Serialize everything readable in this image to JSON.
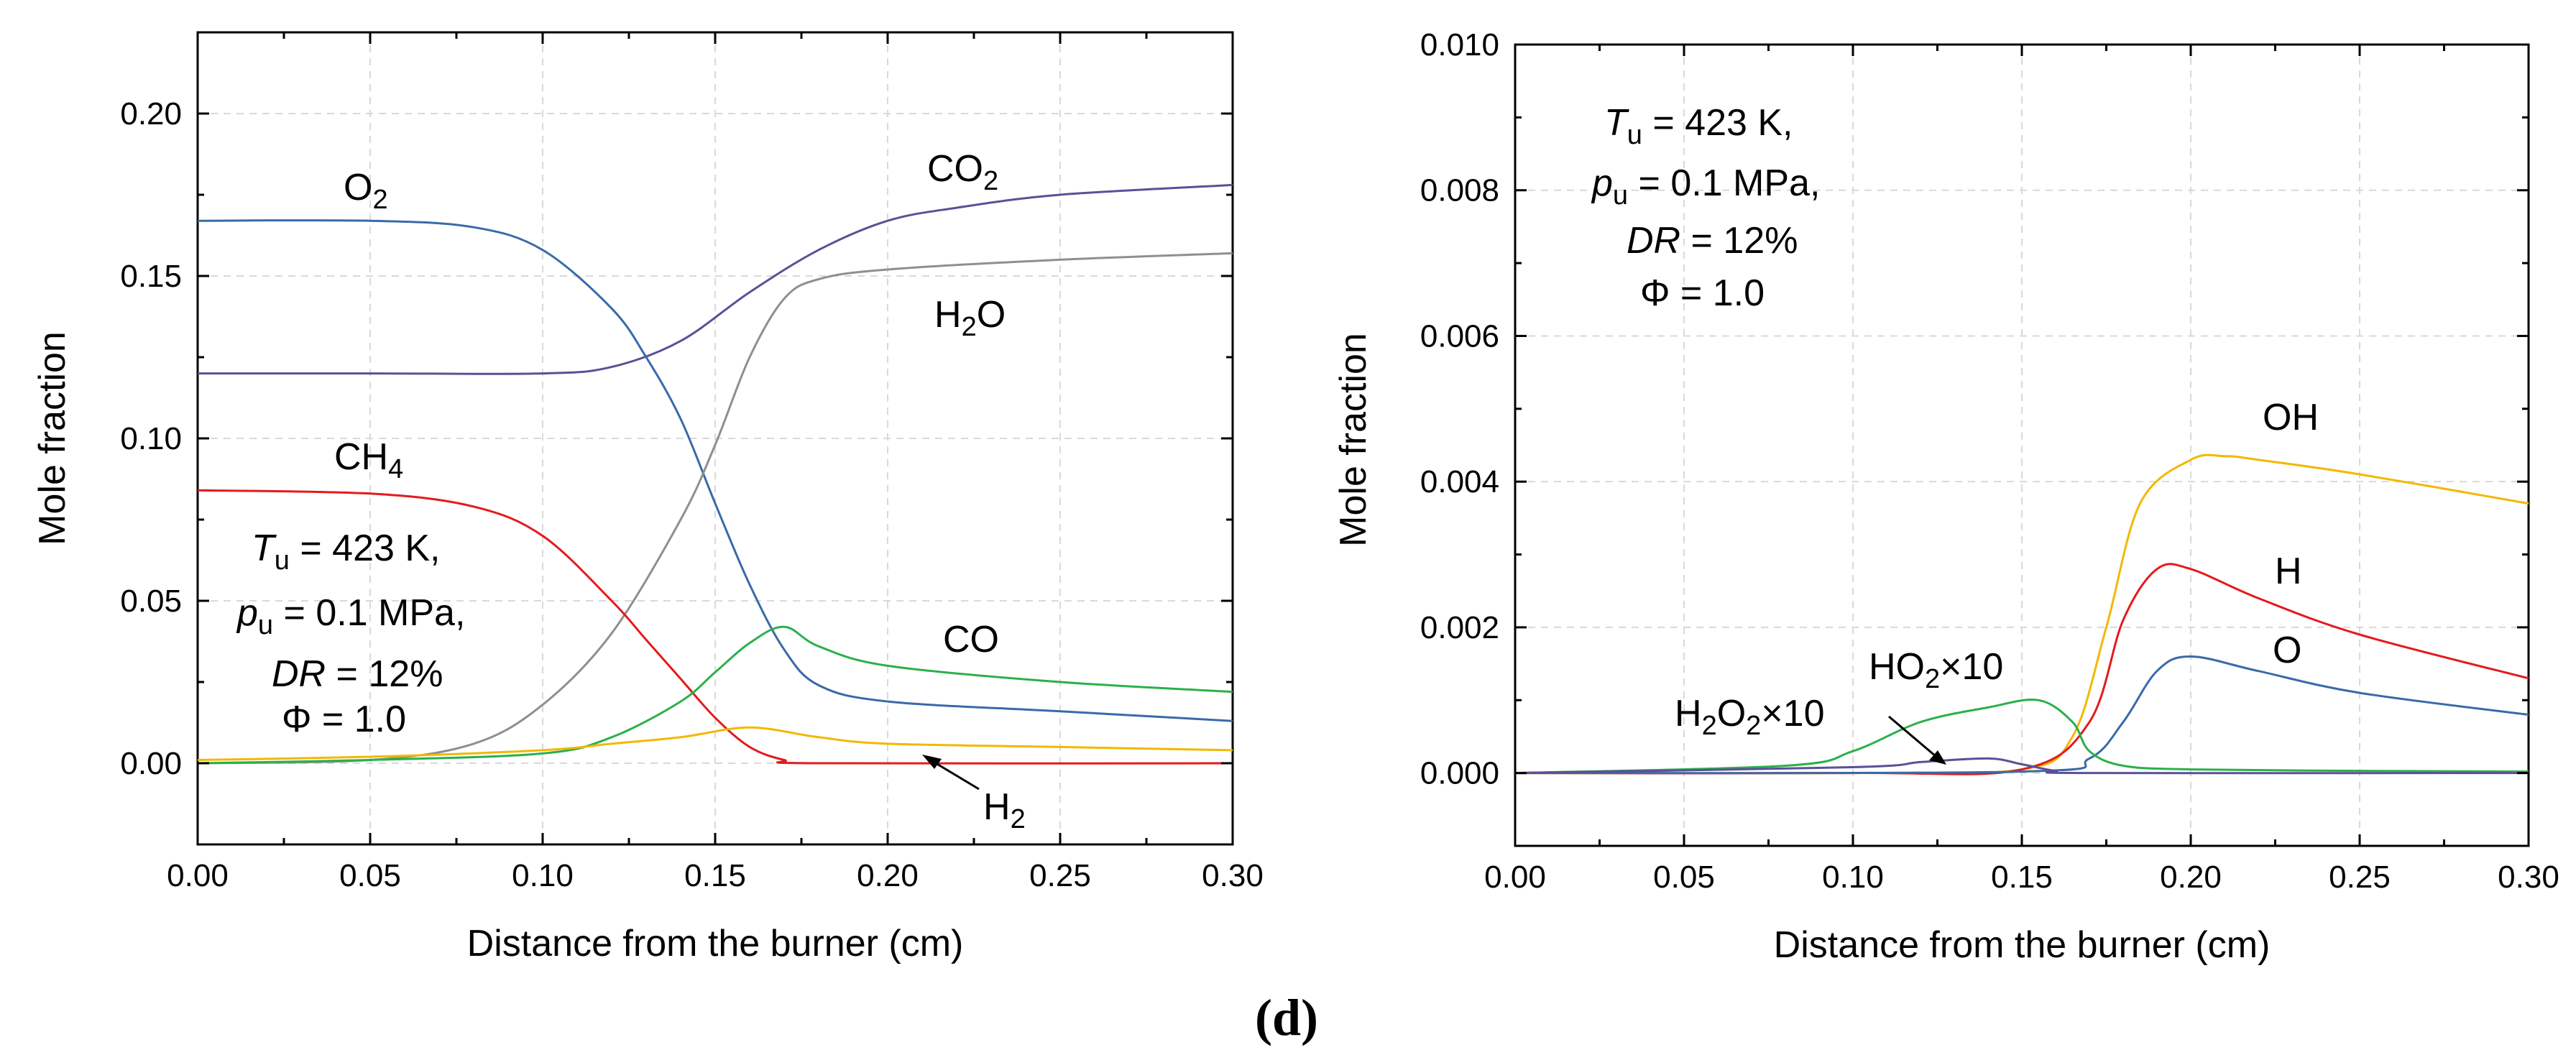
{
  "figure_label": "(d)",
  "chart_data": [
    {
      "type": "line",
      "title": "",
      "xlabel": "Distance from the burner (cm)",
      "ylabel": "Mole fraction",
      "xlim": [
        0,
        0.3
      ],
      "ylim": [
        -0.025,
        0.225
      ],
      "xticks": [
        0,
        0.05,
        0.1,
        0.15,
        0.2,
        0.25,
        0.3
      ],
      "xtick_labels": [
        "0.00",
        "0.05",
        "0.10",
        "0.15",
        "0.20",
        "0.25",
        "0.30"
      ],
      "yticks": [
        0,
        0.05,
        0.1,
        0.15,
        0.2
      ],
      "ytick_labels": [
        "0.00",
        "0.05",
        "0.10",
        "0.15",
        "0.20"
      ],
      "grid": true,
      "conditions": [
        "T",
        "u",
        " = 423 K,",
        "p",
        "u",
        " = 0.1 MPa,",
        "DR",
        " = 12%",
        "Φ = 1.0"
      ],
      "species_labels": {
        "O2": [
          "O",
          "2"
        ],
        "CO2": [
          "CO",
          "2"
        ],
        "H2O": [
          "H",
          "2",
          "O"
        ],
        "CH4": [
          "CH",
          "4"
        ],
        "CO": "CO",
        "H2": [
          "H",
          "2"
        ]
      },
      "series": [
        {
          "name": "CO2",
          "color": "#5c4f98",
          "x": [
            0,
            0.05,
            0.1,
            0.12,
            0.14,
            0.16,
            0.18,
            0.2,
            0.22,
            0.25,
            0.3
          ],
          "values": [
            0.12,
            0.12,
            0.12,
            0.122,
            0.13,
            0.145,
            0.158,
            0.167,
            0.171,
            0.175,
            0.178
          ]
        },
        {
          "name": "O2",
          "color": "#3a6aa8",
          "x": [
            0,
            0.05,
            0.08,
            0.1,
            0.12,
            0.13,
            0.14,
            0.15,
            0.16,
            0.17,
            0.18,
            0.2,
            0.25,
            0.3
          ],
          "values": [
            0.167,
            0.167,
            0.165,
            0.158,
            0.14,
            0.125,
            0.106,
            0.08,
            0.055,
            0.035,
            0.024,
            0.019,
            0.016,
            0.013
          ]
        },
        {
          "name": "H2O",
          "color": "#8f8f8f",
          "x": [
            0,
            0.05,
            0.08,
            0.1,
            0.12,
            0.14,
            0.15,
            0.16,
            0.17,
            0.18,
            0.2,
            0.25,
            0.3
          ],
          "values": [
            0,
            0.001,
            0.006,
            0.018,
            0.04,
            0.075,
            0.098,
            0.125,
            0.143,
            0.149,
            0.152,
            0.155,
            0.157
          ]
        },
        {
          "name": "CH4",
          "color": "#e41a1c",
          "x": [
            0,
            0.05,
            0.08,
            0.1,
            0.12,
            0.13,
            0.14,
            0.15,
            0.16,
            0.17,
            0.18,
            0.3
          ],
          "values": [
            0.084,
            0.083,
            0.079,
            0.07,
            0.05,
            0.038,
            0.026,
            0.014,
            0.005,
            0.001,
            0,
            0
          ]
        },
        {
          "name": "CO",
          "color": "#2bb04a",
          "x": [
            0,
            0.05,
            0.1,
            0.12,
            0.14,
            0.15,
            0.16,
            0.17,
            0.18,
            0.2,
            0.25,
            0.3
          ],
          "values": [
            0,
            0.001,
            0.003,
            0.008,
            0.019,
            0.028,
            0.037,
            0.042,
            0.036,
            0.03,
            0.025,
            0.022
          ]
        },
        {
          "name": "H2",
          "color": "#f2b800",
          "x": [
            0,
            0.05,
            0.1,
            0.12,
            0.14,
            0.16,
            0.18,
            0.2,
            0.25,
            0.3
          ],
          "values": [
            0.001,
            0.002,
            0.004,
            0.006,
            0.008,
            0.011,
            0.008,
            0.006,
            0.005,
            0.004
          ]
        }
      ]
    },
    {
      "type": "line",
      "title": "",
      "xlabel": "Distance from the burner (cm)",
      "ylabel": "Mole fraction",
      "xlim": [
        0,
        0.3
      ],
      "ylim": [
        -0.001,
        0.01
      ],
      "xticks": [
        0,
        0.05,
        0.1,
        0.15,
        0.2,
        0.25,
        0.3
      ],
      "xtick_labels": [
        "0.00",
        "0.05",
        "0.10",
        "0.15",
        "0.20",
        "0.25",
        "0.30"
      ],
      "yticks": [
        0,
        0.002,
        0.004,
        0.006,
        0.008,
        0.01
      ],
      "ytick_labels": [
        "0.000",
        "0.002",
        "0.004",
        "0.006",
        "0.008",
        "0.010"
      ],
      "grid": true,
      "conditions": [
        "T",
        "u",
        " = 423 K,",
        "p",
        "u",
        " = 0.1 MPa,",
        "DR",
        " = 12%",
        "Φ = 1.0"
      ],
      "species_labels": {
        "OH": "OH",
        "H": "H",
        "O": "O",
        "HO2": [
          "HO",
          "2",
          "×10"
        ],
        "H2O2": [
          "H",
          "2",
          "O",
          "2",
          "×10"
        ]
      },
      "series": [
        {
          "name": "OH",
          "color": "#f2b800",
          "x": [
            0,
            0.1,
            0.15,
            0.165,
            0.175,
            0.185,
            0.2,
            0.21,
            0.22,
            0.25,
            0.3
          ],
          "values": [
            0,
            0,
            5e-05,
            0.0005,
            0.002,
            0.0037,
            0.0043,
            0.00435,
            0.0043,
            0.0041,
            0.0037
          ]
        },
        {
          "name": "H",
          "color": "#e41a1c",
          "x": [
            0,
            0.1,
            0.15,
            0.17,
            0.18,
            0.19,
            0.2,
            0.22,
            0.25,
            0.3
          ],
          "values": [
            0,
            0,
            5e-05,
            0.0007,
            0.0021,
            0.0028,
            0.0028,
            0.0024,
            0.0019,
            0.0013
          ]
        },
        {
          "name": "O",
          "color": "#3a6aa8",
          "x": [
            0,
            0.15,
            0.17,
            0.18,
            0.19,
            0.2,
            0.22,
            0.25,
            0.3
          ],
          "values": [
            0,
            2e-05,
            0.0002,
            0.0007,
            0.0014,
            0.0016,
            0.0014,
            0.0011,
            0.0008
          ]
        },
        {
          "name": "HO2x10",
          "color": "#2bb04a",
          "x": [
            0,
            0.08,
            0.1,
            0.12,
            0.14,
            0.155,
            0.165,
            0.17,
            0.18,
            0.2,
            0.25,
            0.3
          ],
          "values": [
            0,
            0.0001,
            0.0003,
            0.0007,
            0.0009,
            0.001,
            0.0007,
            0.0003,
            0.0001,
            5e-05,
            3e-05,
            2e-05
          ]
        },
        {
          "name": "H2O2x10",
          "color": "#5c4f98",
          "x": [
            0,
            0.1,
            0.12,
            0.14,
            0.15,
            0.16,
            0.17,
            0.3
          ],
          "values": [
            0,
            8e-05,
            0.00015,
            0.0002,
            0.00012,
            3e-05,
            0,
            0
          ]
        }
      ]
    }
  ]
}
